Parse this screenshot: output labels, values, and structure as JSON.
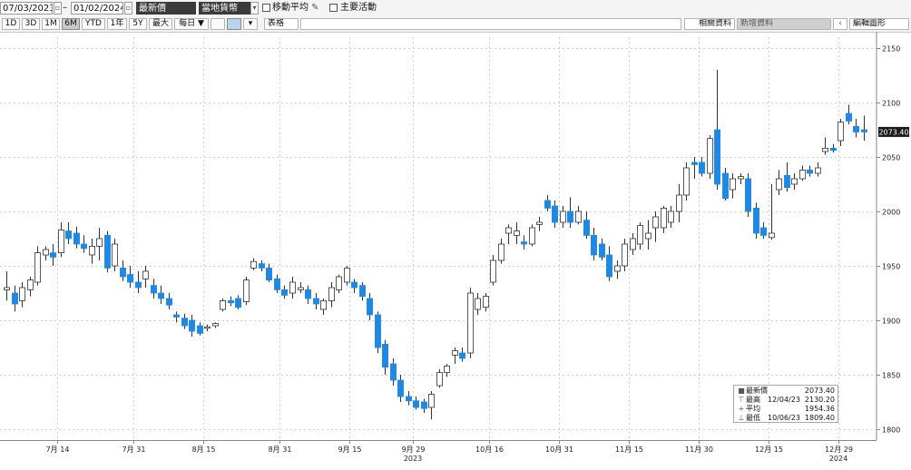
{
  "toolbar": {
    "start_date": "07/03/2023",
    "end_date": "01/02/2024",
    "price_select": "最新價",
    "currency_select": "當地貨幣",
    "moving_average_label": "移動平均",
    "events_label": "主要活動",
    "related_data_label": "相關資料",
    "new_data_placeholder": "新增資料",
    "edit_chart_label": "編輯圖形"
  },
  "period_buttons": [
    "1D",
    "3D",
    "1M",
    "6M",
    "YTD",
    "1年",
    "5Y",
    "最大"
  ],
  "active_period": "6M",
  "frequency_label": "每日 ▼",
  "table_label": "表格",
  "last_price_tag": "2073.40",
  "legend": {
    "rows": [
      {
        "icon": "■",
        "name": "最新價",
        "date": "",
        "value": "2073.40"
      },
      {
        "icon": "⊤",
        "name": "最高",
        "date": "12/04/23",
        "value": "2130.20"
      },
      {
        "icon": "+",
        "name": "平均",
        "date": "",
        "value": "1954.36"
      },
      {
        "icon": "⊥",
        "name": "最低",
        "date": "10/06/23",
        "value": "1809.40"
      }
    ]
  },
  "chart_data": {
    "type": "candlestick",
    "ylim": [
      1790,
      2160
    ],
    "y_ticks": [
      1800,
      1850,
      1900,
      1950,
      2000,
      2050,
      2100,
      2150
    ],
    "grid": true,
    "x_tick_labels": [
      "7月 14",
      "7月 31",
      "8月 15",
      "8月 31",
      "9月 15",
      "9月 29",
      "10月 16",
      "10月 31",
      "11月 15",
      "11月 30",
      "12月 15",
      "12月 29"
    ],
    "year_labels": [
      "2023",
      "2024"
    ],
    "colors": {
      "down": "#1e88e5",
      "up": "#ffffff",
      "wick": "#333333"
    },
    "candles": [
      {
        "o": 1928,
        "h": 1945,
        "l": 1918,
        "c": 1930
      },
      {
        "o": 1925,
        "h": 1932,
        "l": 1908,
        "c": 1915
      },
      {
        "o": 1918,
        "h": 1935,
        "l": 1912,
        "c": 1930
      },
      {
        "o": 1928,
        "h": 1940,
        "l": 1922,
        "c": 1937
      },
      {
        "o": 1935,
        "h": 1968,
        "l": 1932,
        "c": 1962
      },
      {
        "o": 1960,
        "h": 1968,
        "l": 1955,
        "c": 1965
      },
      {
        "o": 1962,
        "h": 1970,
        "l": 1950,
        "c": 1958
      },
      {
        "o": 1962,
        "h": 1990,
        "l": 1958,
        "c": 1983
      },
      {
        "o": 1982,
        "h": 1990,
        "l": 1970,
        "c": 1975
      },
      {
        "o": 1980,
        "h": 1986,
        "l": 1966,
        "c": 1970
      },
      {
        "o": 1970,
        "h": 1978,
        "l": 1962,
        "c": 1966
      },
      {
        "o": 1960,
        "h": 1975,
        "l": 1952,
        "c": 1968
      },
      {
        "o": 1968,
        "h": 1985,
        "l": 1955,
        "c": 1975
      },
      {
        "o": 1978,
        "h": 1982,
        "l": 1944,
        "c": 1948
      },
      {
        "o": 1950,
        "h": 1975,
        "l": 1945,
        "c": 1970
      },
      {
        "o": 1948,
        "h": 1955,
        "l": 1936,
        "c": 1940
      },
      {
        "o": 1942,
        "h": 1950,
        "l": 1930,
        "c": 1935
      },
      {
        "o": 1935,
        "h": 1945,
        "l": 1925,
        "c": 1930
      },
      {
        "o": 1938,
        "h": 1950,
        "l": 1930,
        "c": 1945
      },
      {
        "o": 1932,
        "h": 1938,
        "l": 1920,
        "c": 1925
      },
      {
        "o": 1925,
        "h": 1932,
        "l": 1915,
        "c": 1920
      },
      {
        "o": 1920,
        "h": 1925,
        "l": 1910,
        "c": 1914
      },
      {
        "o": 1905,
        "h": 1908,
        "l": 1898,
        "c": 1903
      },
      {
        "o": 1902,
        "h": 1906,
        "l": 1892,
        "c": 1895
      },
      {
        "o": 1900,
        "h": 1905,
        "l": 1885,
        "c": 1890
      },
      {
        "o": 1895,
        "h": 1898,
        "l": 1886,
        "c": 1888
      },
      {
        "o": 1893,
        "h": 1896,
        "l": 1890,
        "c": 1894
      },
      {
        "o": 1895,
        "h": 1898,
        "l": 1893,
        "c": 1897
      },
      {
        "o": 1910,
        "h": 1920,
        "l": 1908,
        "c": 1918
      },
      {
        "o": 1918,
        "h": 1922,
        "l": 1913,
        "c": 1916
      },
      {
        "o": 1920,
        "h": 1923,
        "l": 1910,
        "c": 1912
      },
      {
        "o": 1917,
        "h": 1940,
        "l": 1914,
        "c": 1937
      },
      {
        "o": 1948,
        "h": 1957,
        "l": 1946,
        "c": 1954
      },
      {
        "o": 1952,
        "h": 1955,
        "l": 1945,
        "c": 1948
      },
      {
        "o": 1948,
        "h": 1952,
        "l": 1935,
        "c": 1937
      },
      {
        "o": 1938,
        "h": 1942,
        "l": 1925,
        "c": 1928
      },
      {
        "o": 1928,
        "h": 1932,
        "l": 1920,
        "c": 1923
      },
      {
        "o": 1925,
        "h": 1940,
        "l": 1920,
        "c": 1935
      },
      {
        "o": 1928,
        "h": 1935,
        "l": 1925,
        "c": 1930
      },
      {
        "o": 1928,
        "h": 1932,
        "l": 1915,
        "c": 1920
      },
      {
        "o": 1920,
        "h": 1925,
        "l": 1910,
        "c": 1915
      },
      {
        "o": 1910,
        "h": 1920,
        "l": 1905,
        "c": 1918
      },
      {
        "o": 1918,
        "h": 1935,
        "l": 1912,
        "c": 1930
      },
      {
        "o": 1928,
        "h": 1942,
        "l": 1925,
        "c": 1940
      },
      {
        "o": 1935,
        "h": 1950,
        "l": 1932,
        "c": 1948
      },
      {
        "o": 1935,
        "h": 1938,
        "l": 1925,
        "c": 1930
      },
      {
        "o": 1932,
        "h": 1935,
        "l": 1918,
        "c": 1922
      },
      {
        "o": 1920,
        "h": 1925,
        "l": 1900,
        "c": 1905
      },
      {
        "o": 1905,
        "h": 1908,
        "l": 1870,
        "c": 1875
      },
      {
        "o": 1878,
        "h": 1882,
        "l": 1850,
        "c": 1857
      },
      {
        "o": 1860,
        "h": 1865,
        "l": 1840,
        "c": 1845
      },
      {
        "o": 1845,
        "h": 1850,
        "l": 1825,
        "c": 1830
      },
      {
        "o": 1830,
        "h": 1835,
        "l": 1822,
        "c": 1826
      },
      {
        "o": 1826,
        "h": 1830,
        "l": 1818,
        "c": 1820
      },
      {
        "o": 1825,
        "h": 1828,
        "l": 1815,
        "c": 1819
      },
      {
        "o": 1820,
        "h": 1835,
        "l": 1809,
        "c": 1832
      },
      {
        "o": 1840,
        "h": 1855,
        "l": 1838,
        "c": 1852
      },
      {
        "o": 1852,
        "h": 1860,
        "l": 1848,
        "c": 1858
      },
      {
        "o": 1868,
        "h": 1875,
        "l": 1860,
        "c": 1872
      },
      {
        "o": 1870,
        "h": 1875,
        "l": 1862,
        "c": 1865
      },
      {
        "o": 1870,
        "h": 1930,
        "l": 1865,
        "c": 1925
      },
      {
        "o": 1910,
        "h": 1925,
        "l": 1905,
        "c": 1920
      },
      {
        "o": 1912,
        "h": 1925,
        "l": 1908,
        "c": 1922
      },
      {
        "o": 1935,
        "h": 1960,
        "l": 1932,
        "c": 1955
      },
      {
        "o": 1955,
        "h": 1975,
        "l": 1952,
        "c": 1970
      },
      {
        "o": 1980,
        "h": 1988,
        "l": 1970,
        "c": 1985
      },
      {
        "o": 1978,
        "h": 1990,
        "l": 1970,
        "c": 1982
      },
      {
        "o": 1972,
        "h": 1978,
        "l": 1965,
        "c": 1970
      },
      {
        "o": 1970,
        "h": 1988,
        "l": 1968,
        "c": 1985
      },
      {
        "o": 1988,
        "h": 1995,
        "l": 1982,
        "c": 1990
      },
      {
        "o": 2010,
        "h": 2015,
        "l": 2000,
        "c": 2003
      },
      {
        "o": 2005,
        "h": 2010,
        "l": 1985,
        "c": 1990
      },
      {
        "o": 1990,
        "h": 2005,
        "l": 1985,
        "c": 2000
      },
      {
        "o": 2000,
        "h": 2013,
        "l": 1985,
        "c": 1990
      },
      {
        "o": 1990,
        "h": 2005,
        "l": 1988,
        "c": 2000
      },
      {
        "o": 1992,
        "h": 2000,
        "l": 1975,
        "c": 1978
      },
      {
        "o": 1978,
        "h": 1985,
        "l": 1955,
        "c": 1960
      },
      {
        "o": 1970,
        "h": 1975,
        "l": 1955,
        "c": 1958
      },
      {
        "o": 1960,
        "h": 1968,
        "l": 1936,
        "c": 1940
      },
      {
        "o": 1945,
        "h": 1955,
        "l": 1938,
        "c": 1950
      },
      {
        "o": 1950,
        "h": 1975,
        "l": 1945,
        "c": 1970
      },
      {
        "o": 1965,
        "h": 1980,
        "l": 1960,
        "c": 1975
      },
      {
        "o": 1970,
        "h": 1990,
        "l": 1965,
        "c": 1987
      },
      {
        "o": 1975,
        "h": 1992,
        "l": 1965,
        "c": 1980
      },
      {
        "o": 1985,
        "h": 2000,
        "l": 1972,
        "c": 1995
      },
      {
        "o": 1985,
        "h": 2005,
        "l": 1980,
        "c": 2003
      },
      {
        "o": 1990,
        "h": 2005,
        "l": 1985,
        "c": 2000
      },
      {
        "o": 2000,
        "h": 2025,
        "l": 1990,
        "c": 2015
      },
      {
        "o": 2015,
        "h": 2045,
        "l": 2010,
        "c": 2040
      },
      {
        "o": 2045,
        "h": 2050,
        "l": 2030,
        "c": 2043
      },
      {
        "o": 2045,
        "h": 2050,
        "l": 2032,
        "c": 2035
      },
      {
        "o": 2035,
        "h": 2070,
        "l": 2030,
        "c": 2067
      },
      {
        "o": 2075,
        "h": 2130,
        "l": 2020,
        "c": 2025
      },
      {
        "o": 2035,
        "h": 2040,
        "l": 2010,
        "c": 2012
      },
      {
        "o": 2020,
        "h": 2035,
        "l": 2012,
        "c": 2030
      },
      {
        "o": 2030,
        "h": 2035,
        "l": 2025,
        "c": 2032
      },
      {
        "o": 2030,
        "h": 2035,
        "l": 1995,
        "c": 2000
      },
      {
        "o": 2003,
        "h": 2008,
        "l": 1975,
        "c": 1980
      },
      {
        "o": 1985,
        "h": 1990,
        "l": 1975,
        "c": 1978
      },
      {
        "o": 1976,
        "h": 2025,
        "l": 1974,
        "c": 1980
      },
      {
        "o": 2020,
        "h": 2038,
        "l": 2015,
        "c": 2030
      },
      {
        "o": 2033,
        "h": 2045,
        "l": 2018,
        "c": 2022
      },
      {
        "o": 2025,
        "h": 2035,
        "l": 2020,
        "c": 2030
      },
      {
        "o": 2030,
        "h": 2042,
        "l": 2028,
        "c": 2038
      },
      {
        "o": 2038,
        "h": 2042,
        "l": 2032,
        "c": 2035
      },
      {
        "o": 2035,
        "h": 2045,
        "l": 2032,
        "c": 2040
      },
      {
        "o": 2055,
        "h": 2068,
        "l": 2052,
        "c": 2058
      },
      {
        "o": 2058,
        "h": 2062,
        "l": 2054,
        "c": 2056
      },
      {
        "o": 2065,
        "h": 2085,
        "l": 2060,
        "c": 2082
      },
      {
        "o": 2090,
        "h": 2098,
        "l": 2080,
        "c": 2083
      },
      {
        "o": 2078,
        "h": 2085,
        "l": 2068,
        "c": 2073
      },
      {
        "o": 2075,
        "h": 2088,
        "l": 2065,
        "c": 2073
      }
    ]
  }
}
